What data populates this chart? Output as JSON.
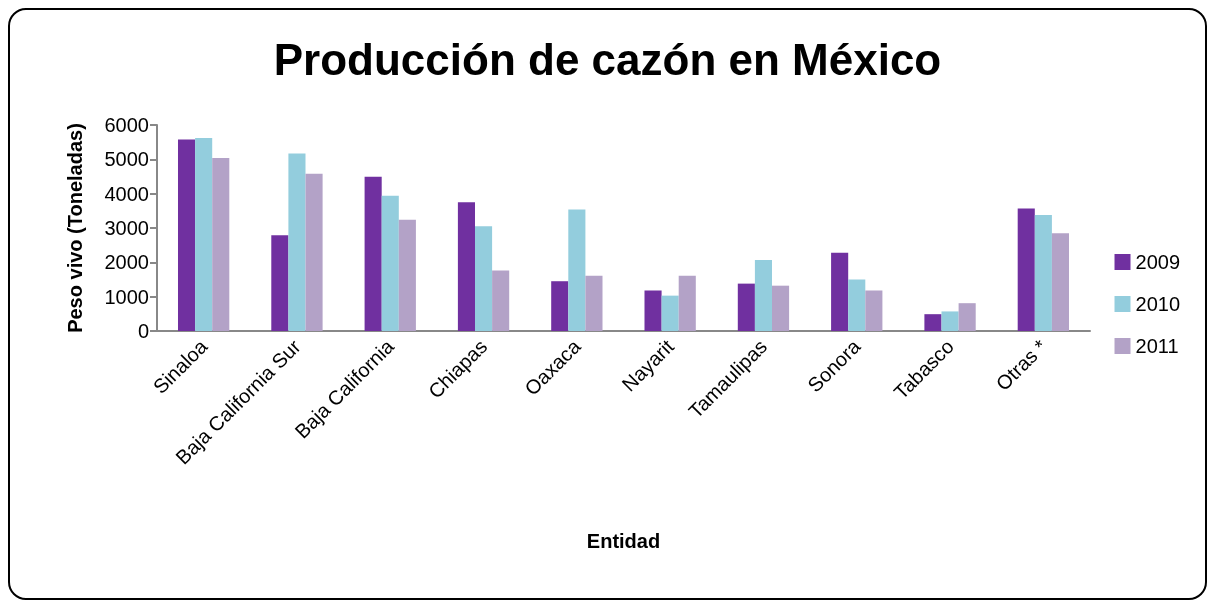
{
  "chart_data": {
    "type": "bar",
    "title": "Producción de cazón en México",
    "xlabel": "Entidad",
    "ylabel": "Peso vivo (Toneladas)",
    "categories": [
      "Sinaloa",
      "Baja California Sur",
      "Baja California",
      "Chiapas",
      "Oaxaca",
      "Nayarit",
      "Tamaulipas",
      "Sonora",
      "Tabasco",
      "Otras *"
    ],
    "series": [
      {
        "name": "2009",
        "color": "#7030a0",
        "values": [
          5580,
          2790,
          4490,
          3750,
          1450,
          1180,
          1380,
          2280,
          490,
          3570
        ]
      },
      {
        "name": "2010",
        "color": "#93cddd",
        "values": [
          5620,
          5170,
          3940,
          3050,
          3540,
          1030,
          2070,
          1500,
          570,
          3380
        ]
      },
      {
        "name": "2011",
        "color": "#b3a2c7",
        "values": [
          5040,
          4580,
          3240,
          1760,
          1610,
          1610,
          1320,
          1180,
          810,
          2850
        ]
      }
    ],
    "ylim": [
      0,
      6000
    ],
    "yticks": [
      0,
      1000,
      2000,
      3000,
      4000,
      5000,
      6000
    ],
    "grid": false,
    "legend": "right"
  }
}
